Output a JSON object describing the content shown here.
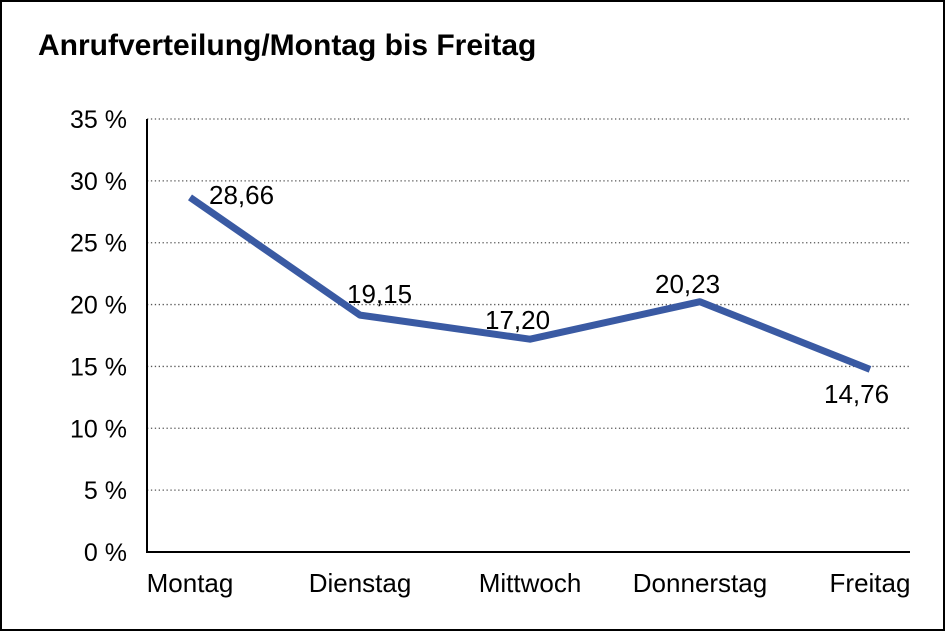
{
  "title": "Anrufverteilung/Montag bis Freitag",
  "colors": {
    "line": "#3A5AA3",
    "text": "#000000",
    "grid": "#555555",
    "axis": "#000000",
    "background": "#FFFFFF",
    "frame_border": "#000000"
  },
  "chart_data": {
    "type": "line",
    "title": "Anrufverteilung/Montag bis Freitag",
    "categories": [
      "Montag",
      "Dienstag",
      "Mittwoch",
      "Donnerstag",
      "Freitag"
    ],
    "values": [
      28.66,
      19.15,
      17.2,
      20.23,
      14.76
    ],
    "value_labels": [
      "28,66",
      "19,15",
      "17,20",
      "20,23",
      "14,76"
    ],
    "xlabel": "",
    "ylabel": "",
    "ylim": [
      0,
      35
    ],
    "y_tick_step": 5,
    "y_tick_labels": [
      "0 %",
      "5 %",
      "10 %",
      "15 %",
      "20 %",
      "25 %",
      "30 %",
      "35 %"
    ],
    "grid": true,
    "grid_style": "dotted-horizontal",
    "legend_position": "none",
    "line_color": "#3A5AA3"
  }
}
